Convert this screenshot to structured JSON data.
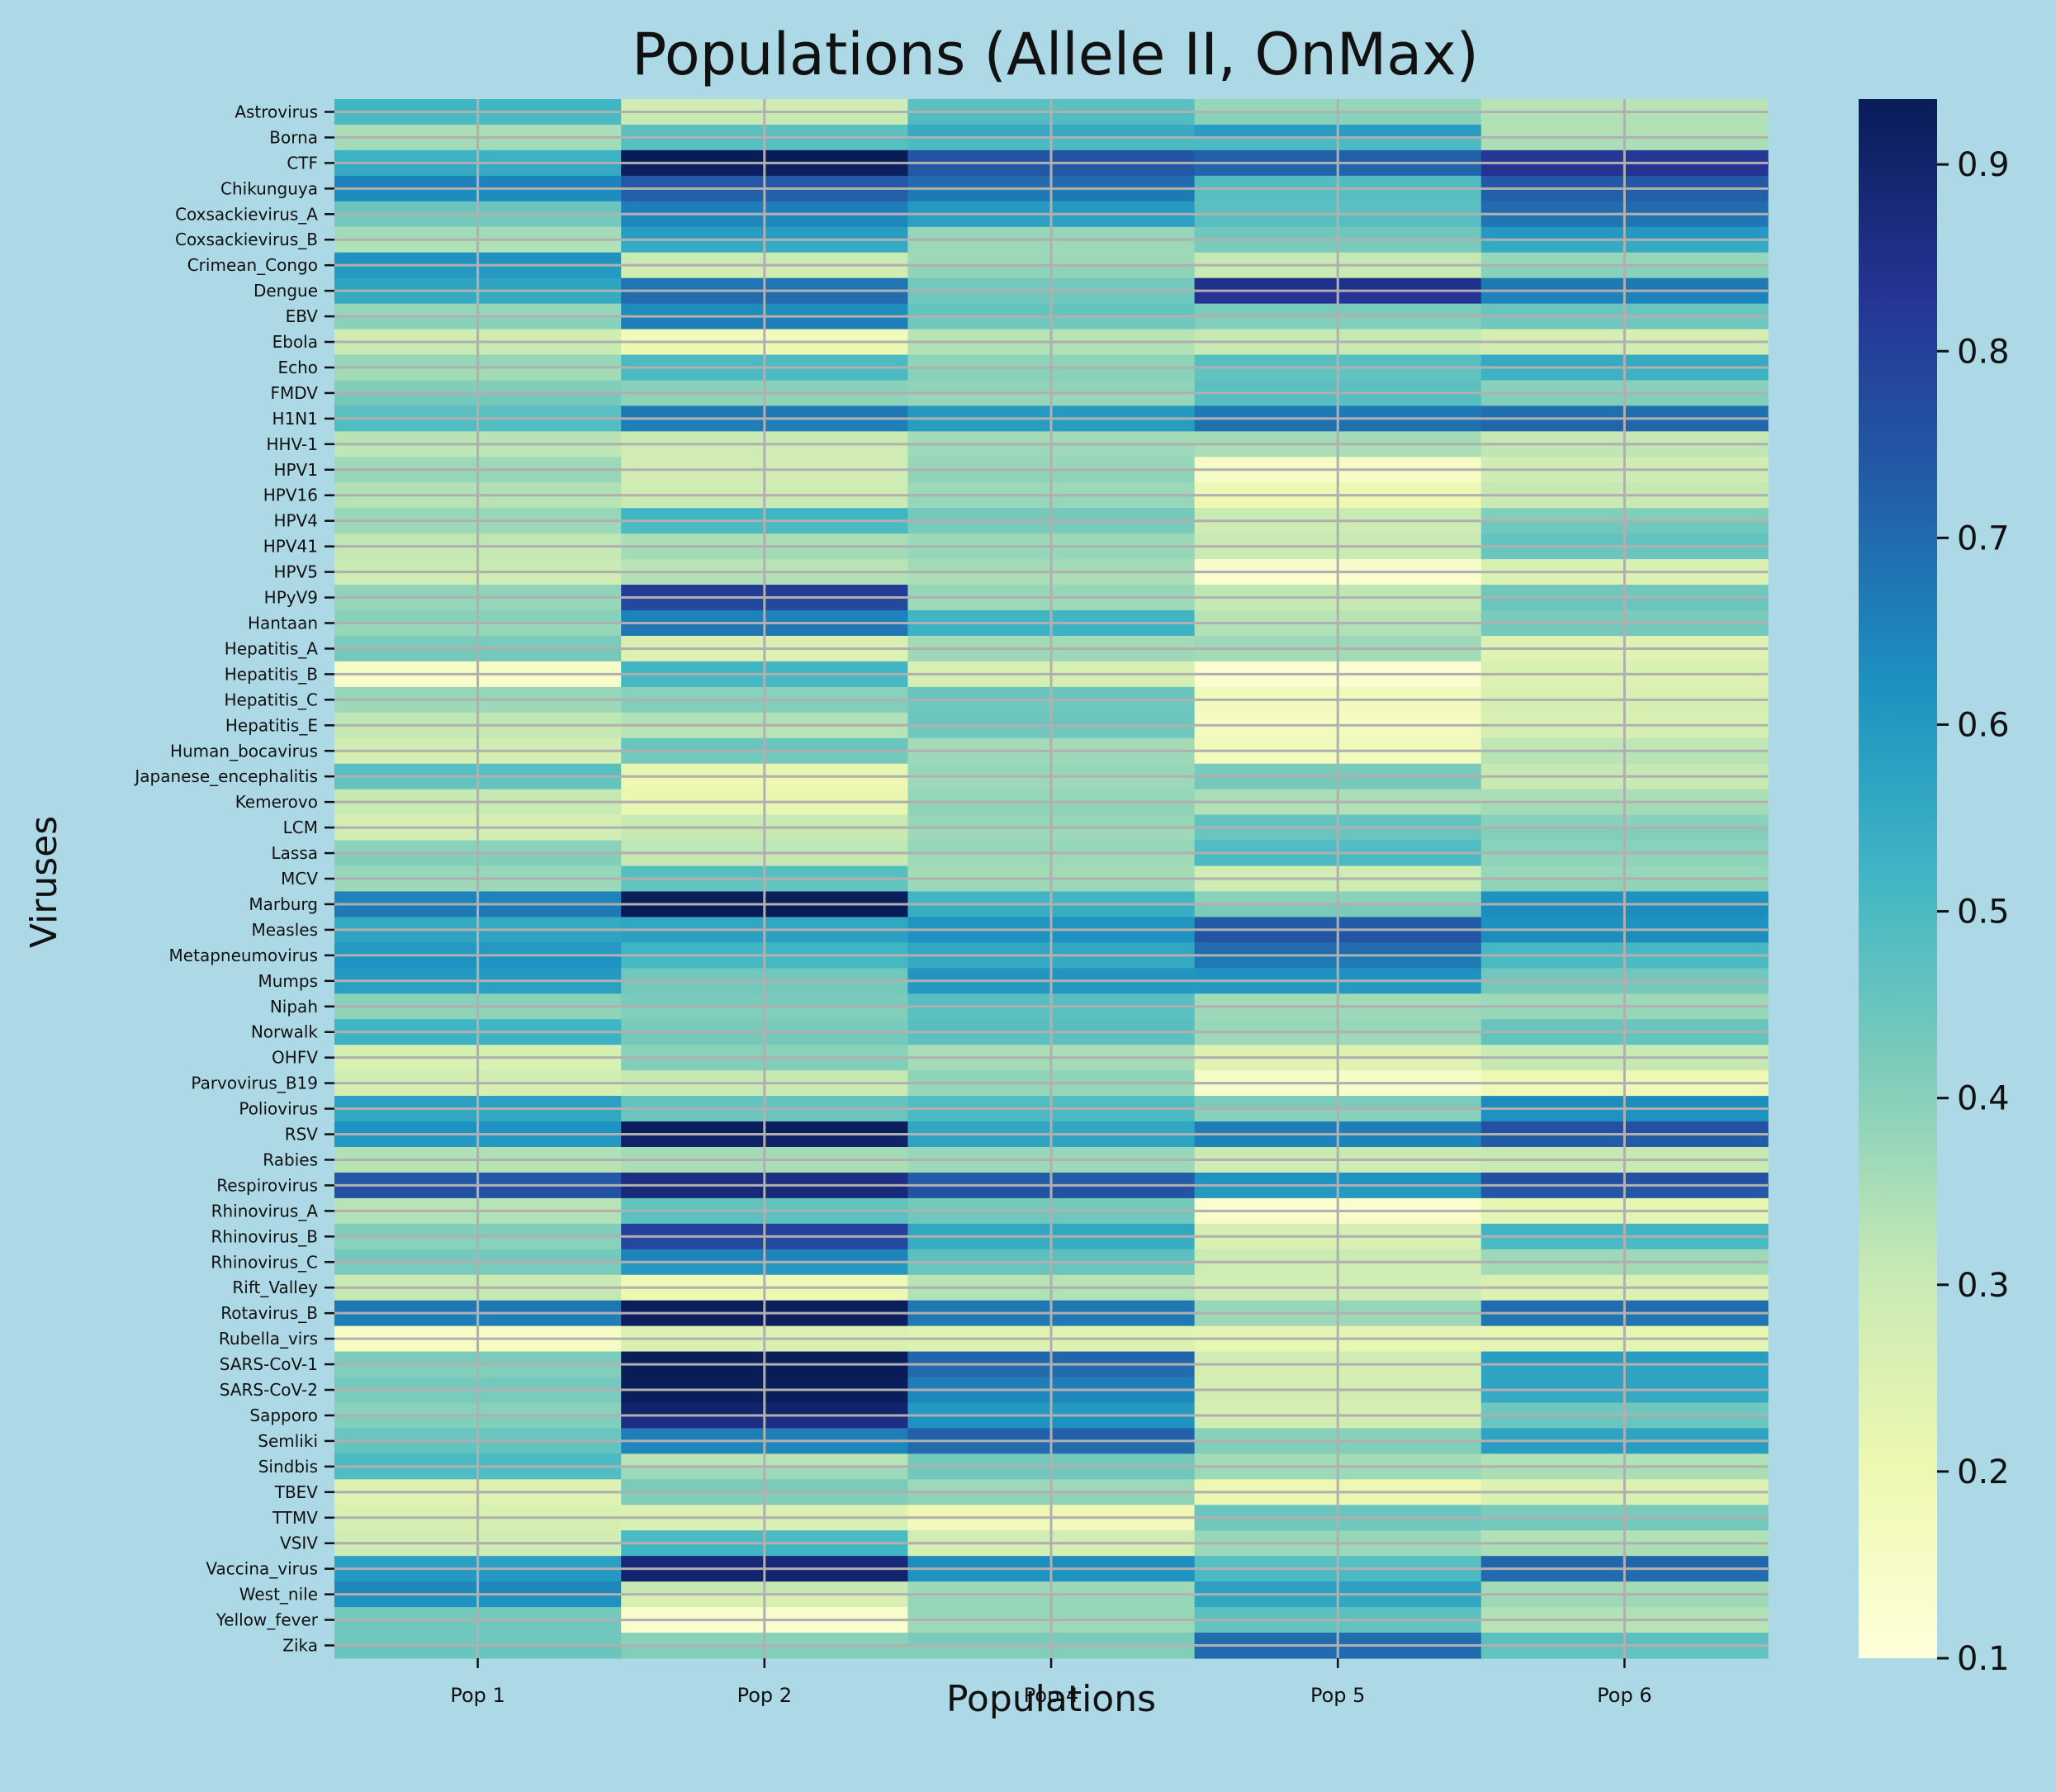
{
  "chart_data": {
    "type": "heatmap",
    "title": "Populations (Allele II, OnMax)",
    "xlabel": "Populations",
    "ylabel": "Viruses",
    "colormap": "YlGnBu",
    "colorbar": {
      "range": [
        0.1,
        0.935
      ],
      "ticks": [
        "0.1",
        "0.2",
        "0.3",
        "0.4",
        "0.5",
        "0.6",
        "0.7",
        "0.8",
        "0.9"
      ]
    },
    "grid": true,
    "grid_color": "#b0b0b0",
    "background": "#add8e6",
    "columns": [
      "Pop 1",
      "Pop 2",
      "Pop 4",
      "Pop 5",
      "Pop 6"
    ],
    "labeled_rows": [
      "Astrovirus",
      "Borna",
      "CTF",
      "Chikunguya",
      "Coxsackievirus_A",
      "Coxsackievirus_B",
      "Crimean_Congo",
      "Dengue",
      "EBV",
      "Ebola",
      "Echo",
      "FMDV",
      "H1N1",
      "HHV-1",
      "HPV1",
      "HPV16",
      "HPV4",
      "HPV41",
      "HPV5",
      "HPyV9",
      "Hantaan",
      "Hepatitis_A",
      "Hepatitis_B",
      "Hepatitis_C",
      "Hepatitis_E",
      "Human_bocavirus",
      "Japanese_encephalitis",
      "Kemerovo",
      "LCM",
      "Lassa",
      "MCV",
      "Marburg",
      "Measles",
      "Metapneumovirus",
      "Mumps",
      "Nipah",
      "Norwalk",
      "OHFV",
      "Parvovirus_B19",
      "Poliovirus",
      "RSV",
      "Rabies",
      "Respirovirus",
      "Rhinovirus_A",
      "Rhinovirus_B",
      "Rhinovirus_C",
      "Rift_Valley",
      "Rotavirus_B",
      "Rubella_virs",
      "SARS-CoV-1",
      "SARS-CoV-2",
      "Sapporo",
      "Semliki",
      "Sindbis",
      "TBEV",
      "TTMV",
      "VSIV",
      "Vaccina_virus",
      "West_nile",
      "Yellow_fever",
      "Zika"
    ],
    "note_rows": "Each labeled virus spans two heatmap rows; values listed per half-row in order.",
    "values": [
      [
        0.52,
        0.29,
        0.47,
        0.38,
        0.33
      ],
      [
        0.5,
        0.3,
        0.49,
        0.4,
        0.34
      ],
      [
        0.35,
        0.47,
        0.55,
        0.59,
        0.34
      ],
      [
        0.36,
        0.48,
        0.5,
        0.5,
        0.35
      ],
      [
        0.53,
        0.94,
        0.75,
        0.72,
        0.82
      ],
      [
        0.55,
        0.92,
        0.74,
        0.71,
        0.83
      ],
      [
        0.65,
        0.74,
        0.7,
        0.49,
        0.74
      ],
      [
        0.63,
        0.72,
        0.67,
        0.48,
        0.72
      ],
      [
        0.45,
        0.66,
        0.6,
        0.47,
        0.7
      ],
      [
        0.43,
        0.64,
        0.58,
        0.48,
        0.68
      ],
      [
        0.36,
        0.59,
        0.38,
        0.44,
        0.6
      ],
      [
        0.34,
        0.55,
        0.37,
        0.42,
        0.55
      ],
      [
        0.62,
        0.3,
        0.37,
        0.31,
        0.38
      ],
      [
        0.6,
        0.28,
        0.39,
        0.3,
        0.4
      ],
      [
        0.57,
        0.68,
        0.43,
        0.85,
        0.67
      ],
      [
        0.55,
        0.7,
        0.44,
        0.83,
        0.65
      ],
      [
        0.38,
        0.63,
        0.46,
        0.42,
        0.45
      ],
      [
        0.4,
        0.66,
        0.44,
        0.41,
        0.44
      ],
      [
        0.28,
        0.18,
        0.33,
        0.31,
        0.27
      ],
      [
        0.3,
        0.2,
        0.34,
        0.3,
        0.28
      ],
      [
        0.38,
        0.5,
        0.39,
        0.48,
        0.55
      ],
      [
        0.36,
        0.5,
        0.4,
        0.46,
        0.53
      ],
      [
        0.41,
        0.4,
        0.39,
        0.47,
        0.4
      ],
      [
        0.43,
        0.39,
        0.38,
        0.48,
        0.41
      ],
      [
        0.47,
        0.67,
        0.6,
        0.67,
        0.69
      ],
      [
        0.49,
        0.66,
        0.59,
        0.69,
        0.71
      ],
      [
        0.33,
        0.3,
        0.36,
        0.36,
        0.31
      ],
      [
        0.32,
        0.29,
        0.37,
        0.35,
        0.32
      ],
      [
        0.37,
        0.28,
        0.38,
        0.16,
        0.28
      ],
      [
        0.38,
        0.28,
        0.39,
        0.15,
        0.29
      ],
      [
        0.34,
        0.29,
        0.37,
        0.19,
        0.31
      ],
      [
        0.33,
        0.3,
        0.38,
        0.2,
        0.3
      ],
      [
        0.38,
        0.52,
        0.43,
        0.3,
        0.41
      ],
      [
        0.37,
        0.5,
        0.42,
        0.29,
        0.44
      ],
      [
        0.32,
        0.35,
        0.37,
        0.3,
        0.46
      ],
      [
        0.31,
        0.36,
        0.38,
        0.3,
        0.45
      ],
      [
        0.3,
        0.33,
        0.36,
        0.14,
        0.26
      ],
      [
        0.29,
        0.34,
        0.35,
        0.13,
        0.25
      ],
      [
        0.39,
        0.81,
        0.38,
        0.32,
        0.44
      ],
      [
        0.38,
        0.78,
        0.37,
        0.31,
        0.45
      ],
      [
        0.4,
        0.65,
        0.52,
        0.33,
        0.42
      ],
      [
        0.38,
        0.68,
        0.53,
        0.34,
        0.43
      ],
      [
        0.42,
        0.26,
        0.36,
        0.37,
        0.25
      ],
      [
        0.43,
        0.25,
        0.37,
        0.36,
        0.24
      ],
      [
        0.15,
        0.52,
        0.26,
        0.12,
        0.26
      ],
      [
        0.14,
        0.51,
        0.27,
        0.13,
        0.25
      ],
      [
        0.38,
        0.4,
        0.45,
        0.18,
        0.26
      ],
      [
        0.37,
        0.41,
        0.44,
        0.17,
        0.27
      ],
      [
        0.32,
        0.34,
        0.45,
        0.16,
        0.26
      ],
      [
        0.31,
        0.33,
        0.44,
        0.17,
        0.27
      ],
      [
        0.28,
        0.45,
        0.36,
        0.18,
        0.32
      ],
      [
        0.27,
        0.43,
        0.37,
        0.17,
        0.33
      ],
      [
        0.48,
        0.22,
        0.38,
        0.42,
        0.31
      ],
      [
        0.46,
        0.2,
        0.37,
        0.43,
        0.3
      ],
      [
        0.31,
        0.21,
        0.38,
        0.35,
        0.35
      ],
      [
        0.3,
        0.22,
        0.39,
        0.34,
        0.36
      ],
      [
        0.27,
        0.3,
        0.38,
        0.46,
        0.4
      ],
      [
        0.28,
        0.31,
        0.37,
        0.45,
        0.41
      ],
      [
        0.4,
        0.32,
        0.38,
        0.49,
        0.4
      ],
      [
        0.41,
        0.31,
        0.37,
        0.5,
        0.39
      ],
      [
        0.38,
        0.48,
        0.36,
        0.28,
        0.38
      ],
      [
        0.37,
        0.46,
        0.37,
        0.29,
        0.39
      ],
      [
        0.65,
        0.93,
        0.52,
        0.4,
        0.62
      ],
      [
        0.67,
        0.94,
        0.54,
        0.42,
        0.63
      ],
      [
        0.55,
        0.56,
        0.61,
        0.73,
        0.62
      ],
      [
        0.57,
        0.58,
        0.62,
        0.75,
        0.63
      ],
      [
        0.6,
        0.52,
        0.56,
        0.7,
        0.51
      ],
      [
        0.62,
        0.51,
        0.55,
        0.67,
        0.5
      ],
      [
        0.6,
        0.44,
        0.61,
        0.62,
        0.44
      ],
      [
        0.58,
        0.43,
        0.6,
        0.6,
        0.43
      ],
      [
        0.4,
        0.42,
        0.48,
        0.36,
        0.37
      ],
      [
        0.39,
        0.41,
        0.47,
        0.37,
        0.38
      ],
      [
        0.52,
        0.42,
        0.48,
        0.38,
        0.45
      ],
      [
        0.53,
        0.43,
        0.47,
        0.37,
        0.46
      ],
      [
        0.27,
        0.4,
        0.35,
        0.25,
        0.3
      ],
      [
        0.26,
        0.41,
        0.36,
        0.24,
        0.31
      ],
      [
        0.28,
        0.31,
        0.39,
        0.15,
        0.2
      ],
      [
        0.27,
        0.3,
        0.38,
        0.14,
        0.19
      ],
      [
        0.58,
        0.46,
        0.49,
        0.42,
        0.63
      ],
      [
        0.56,
        0.45,
        0.5,
        0.4,
        0.62
      ],
      [
        0.62,
        0.93,
        0.56,
        0.66,
        0.76
      ],
      [
        0.6,
        0.91,
        0.57,
        0.65,
        0.73
      ],
      [
        0.34,
        0.36,
        0.38,
        0.3,
        0.31
      ],
      [
        0.33,
        0.35,
        0.37,
        0.29,
        0.3
      ],
      [
        0.74,
        0.86,
        0.73,
        0.62,
        0.76
      ],
      [
        0.76,
        0.88,
        0.75,
        0.6,
        0.74
      ],
      [
        0.33,
        0.46,
        0.43,
        0.13,
        0.22
      ],
      [
        0.34,
        0.47,
        0.44,
        0.14,
        0.23
      ],
      [
        0.41,
        0.8,
        0.56,
        0.27,
        0.52
      ],
      [
        0.4,
        0.78,
        0.54,
        0.26,
        0.5
      ],
      [
        0.43,
        0.65,
        0.47,
        0.3,
        0.37
      ],
      [
        0.42,
        0.6,
        0.45,
        0.29,
        0.36
      ],
      [
        0.3,
        0.19,
        0.33,
        0.28,
        0.26
      ],
      [
        0.31,
        0.2,
        0.34,
        0.29,
        0.25
      ],
      [
        0.68,
        0.93,
        0.68,
        0.38,
        0.7
      ],
      [
        0.66,
        0.92,
        0.67,
        0.37,
        0.68
      ],
      [
        0.15,
        0.25,
        0.24,
        0.23,
        0.22
      ],
      [
        0.16,
        0.26,
        0.25,
        0.22,
        0.23
      ],
      [
        0.42,
        0.93,
        0.71,
        0.28,
        0.59
      ],
      [
        0.41,
        0.94,
        0.7,
        0.27,
        0.57
      ],
      [
        0.43,
        0.93,
        0.66,
        0.27,
        0.57
      ],
      [
        0.42,
        0.93,
        0.64,
        0.28,
        0.55
      ],
      [
        0.4,
        0.9,
        0.6,
        0.27,
        0.44
      ],
      [
        0.41,
        0.86,
        0.62,
        0.28,
        0.45
      ],
      [
        0.45,
        0.66,
        0.72,
        0.4,
        0.57
      ],
      [
        0.46,
        0.64,
        0.7,
        0.41,
        0.59
      ],
      [
        0.5,
        0.33,
        0.43,
        0.36,
        0.34
      ],
      [
        0.49,
        0.37,
        0.44,
        0.37,
        0.35
      ],
      [
        0.25,
        0.42,
        0.37,
        0.2,
        0.25
      ],
      [
        0.24,
        0.41,
        0.39,
        0.21,
        0.26
      ],
      [
        0.26,
        0.25,
        0.2,
        0.45,
        0.42
      ],
      [
        0.27,
        0.26,
        0.18,
        0.44,
        0.43
      ],
      [
        0.28,
        0.5,
        0.28,
        0.38,
        0.34
      ],
      [
        0.29,
        0.52,
        0.27,
        0.37,
        0.35
      ],
      [
        0.58,
        0.88,
        0.63,
        0.48,
        0.71
      ],
      [
        0.6,
        0.9,
        0.62,
        0.5,
        0.7
      ],
      [
        0.64,
        0.31,
        0.37,
        0.58,
        0.36
      ],
      [
        0.62,
        0.26,
        0.38,
        0.56,
        0.37
      ],
      [
        0.43,
        0.14,
        0.38,
        0.47,
        0.34
      ],
      [
        0.44,
        0.13,
        0.37,
        0.46,
        0.33
      ],
      [
        0.44,
        0.4,
        0.42,
        0.7,
        0.47
      ],
      [
        0.45,
        0.41,
        0.41,
        0.7,
        0.46
      ]
    ]
  }
}
